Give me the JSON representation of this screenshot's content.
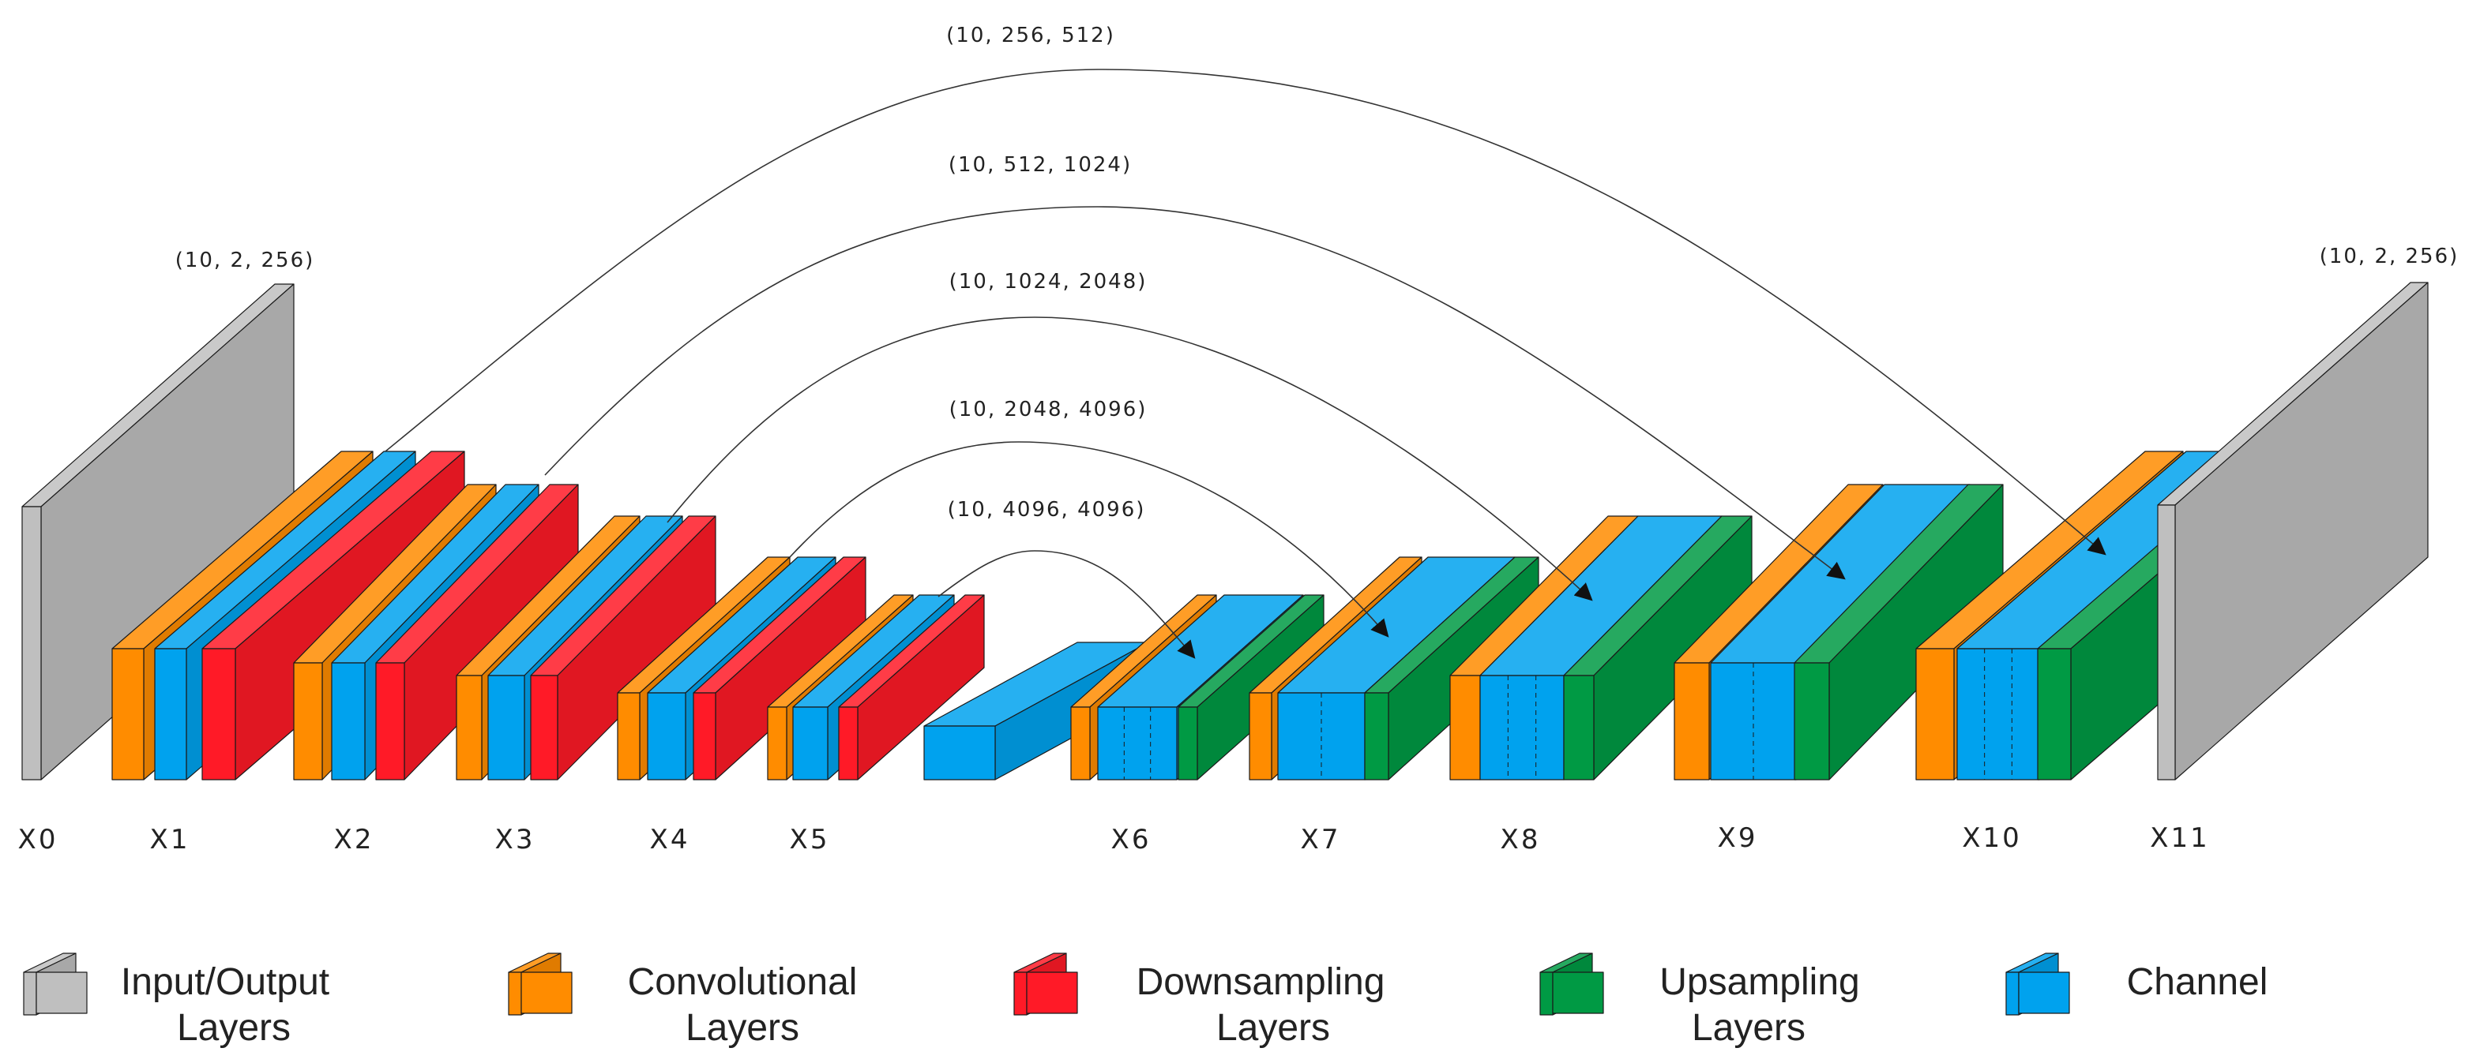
{
  "colors": {
    "io": "#bfbfbf",
    "conv": "#ff8c00",
    "down": "#ff1a27",
    "up": "#009a44",
    "chan": "#00a2ee"
  },
  "skip_labels": [
    "(10, 256, 512)",
    "(10, 512, 1024)",
    "(10, 1024, 2048)",
    "(10, 2048, 4096)",
    "(10, 4096, 4096)"
  ],
  "io_labels": {
    "input": "(10, 2, 256)",
    "output": "(10, 2, 256)"
  },
  "stage_labels": [
    "X0",
    "X1",
    "X2",
    "X3",
    "X4",
    "X5",
    "X6",
    "X7",
    "X8",
    "X9",
    "X10",
    "X11"
  ],
  "legend": [
    {
      "key": "io",
      "line1": "Input/Output",
      "line2": "Layers"
    },
    {
      "key": "conv",
      "line1": "Convolutional",
      "line2": "Layers"
    },
    {
      "key": "down",
      "line1": "Downsampling",
      "line2": "Layers"
    },
    {
      "key": "up",
      "line1": "Upsampling",
      "line2": "Layers"
    },
    {
      "key": "chan",
      "line1": "Channel",
      "line2": ""
    }
  ]
}
